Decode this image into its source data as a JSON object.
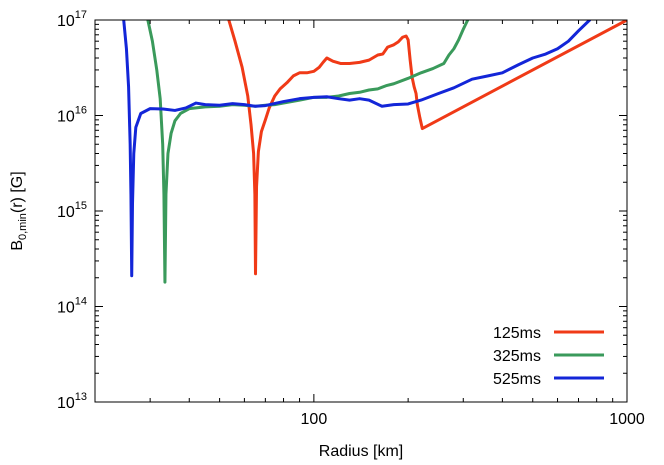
{
  "chart_data": {
    "type": "line",
    "title": "",
    "xlabel": "Radius [km]",
    "ylabel": {
      "base": "B",
      "sub": "0,min",
      "rest": "(r) [G]"
    },
    "xscale": "log",
    "yscale": "log",
    "xlim": [
      20,
      1000
    ],
    "ylim": [
      10000000000000.0,
      1e+17
    ],
    "grid": false,
    "legend_position": "bottom-right",
    "x_ticks": [
      {
        "value": 100,
        "label": "100"
      },
      {
        "value": 1000,
        "label": "1000"
      }
    ],
    "y_ticks": [
      {
        "value": 10000000000000.0,
        "base": "10",
        "exp": "13"
      },
      {
        "value": 100000000000000.0,
        "base": "10",
        "exp": "14"
      },
      {
        "value": 1000000000000000.0,
        "base": "10",
        "exp": "15"
      },
      {
        "value": 1e+16,
        "base": "10",
        "exp": "16"
      },
      {
        "value": 1e+17,
        "base": "10",
        "exp": "17"
      }
    ],
    "series": [
      {
        "name": "125ms",
        "color": "#f03a17",
        "points": [
          [
            53.5,
            1e+17
          ],
          [
            56,
            6e+16
          ],
          [
            59,
            3.2e+16
          ],
          [
            61.5,
            1.6e+16
          ],
          [
            63,
            8000000000000000.0
          ],
          [
            64.2,
            4000000000000000.0
          ],
          [
            64.8,
            1500000000000000.0
          ],
          [
            65.1,
            220000000000000.0
          ],
          [
            65.6,
            1800000000000000.0
          ],
          [
            66.5,
            4200000000000000.0
          ],
          [
            68,
            6800000000000000.0
          ],
          [
            70,
            9000000000000000.0
          ],
          [
            72,
            1.2e+16
          ],
          [
            75,
            1.6e+16
          ],
          [
            78,
            1.9e+16
          ],
          [
            82,
            2.2e+16
          ],
          [
            86,
            2.6e+16
          ],
          [
            90,
            2.8e+16
          ],
          [
            95,
            2.8e+16
          ],
          [
            100,
            2.9e+16
          ],
          [
            104,
            3.2e+16
          ],
          [
            107,
            3.6e+16
          ],
          [
            110,
            4e+16
          ],
          [
            115,
            3.7e+16
          ],
          [
            122,
            3.5e+16
          ],
          [
            130,
            3.5e+16
          ],
          [
            140,
            3.6e+16
          ],
          [
            150,
            3.8e+16
          ],
          [
            160,
            4.3e+16
          ],
          [
            166,
            4.4e+16
          ],
          [
            172,
            5.2e+16
          ],
          [
            180,
            5.5e+16
          ],
          [
            186,
            5.9e+16
          ],
          [
            192,
            6.6e+16
          ],
          [
            197,
            6.8e+16
          ],
          [
            200,
            6.2e+16
          ],
          [
            203,
            3.8e+16
          ],
          [
            206,
            2.5e+16
          ],
          [
            209,
            2e+16
          ],
          [
            212,
            1.7e+16
          ],
          [
            214,
            1.3e+16
          ],
          [
            218,
            9500000000000000.0
          ],
          [
            222,
            7300000000000000.0
          ],
          [
            1000,
            1e+17
          ]
        ]
      },
      {
        "name": "325ms",
        "color": "#3a9a5b",
        "points": [
          [
            29.5,
            1e+17
          ],
          [
            30.5,
            6e+16
          ],
          [
            31.5,
            3e+16
          ],
          [
            32.3,
            1.5e+16
          ],
          [
            32.9,
            5000000000000000.0
          ],
          [
            33.2,
            1500000000000000.0
          ],
          [
            33.45,
            180000000000000.0
          ],
          [
            33.7,
            1500000000000000.0
          ],
          [
            34.2,
            4000000000000000.0
          ],
          [
            35,
            6500000000000000.0
          ],
          [
            36,
            8800000000000000.0
          ],
          [
            37.5,
            1.05e+16
          ],
          [
            40,
            1.18e+16
          ],
          [
            45,
            1.23e+16
          ],
          [
            50,
            1.25e+16
          ],
          [
            55,
            1.3e+16
          ],
          [
            60,
            1.28e+16
          ],
          [
            65,
            1.25e+16
          ],
          [
            70,
            1.28e+16
          ],
          [
            75,
            1.3e+16
          ],
          [
            80,
            1.35e+16
          ],
          [
            90,
            1.45e+16
          ],
          [
            100,
            1.55e+16
          ],
          [
            110,
            1.55e+16
          ],
          [
            120,
            1.6e+16
          ],
          [
            130,
            1.7e+16
          ],
          [
            140,
            1.75e+16
          ],
          [
            150,
            1.85e+16
          ],
          [
            160,
            1.9e+16
          ],
          [
            170,
            2.05e+16
          ],
          [
            180,
            2.15e+16
          ],
          [
            200,
            2.45e+16
          ],
          [
            220,
            2.8e+16
          ],
          [
            240,
            3.1e+16
          ],
          [
            260,
            3.5e+16
          ],
          [
            270,
            4.3e+16
          ],
          [
            280,
            5e+16
          ],
          [
            290,
            6.2e+16
          ],
          [
            300,
            8e+16
          ],
          [
            310,
            1e+17
          ]
        ]
      },
      {
        "name": "525ms",
        "color": "#1326d8",
        "points": [
          [
            24.7,
            1e+17
          ],
          [
            25.2,
            5e+16
          ],
          [
            25.6,
            2e+16
          ],
          [
            25.9,
            5000000000000000.0
          ],
          [
            26.05,
            1500000000000000.0
          ],
          [
            26.2,
            210000000000000.0
          ],
          [
            26.35,
            1200000000000000.0
          ],
          [
            26.6,
            4000000000000000.0
          ],
          [
            27,
            7500000000000000.0
          ],
          [
            28,
            1.05e+16
          ],
          [
            30,
            1.18e+16
          ],
          [
            33,
            1.17e+16
          ],
          [
            36,
            1.13e+16
          ],
          [
            39,
            1.2e+16
          ],
          [
            42,
            1.35e+16
          ],
          [
            45,
            1.3e+16
          ],
          [
            50,
            1.28e+16
          ],
          [
            55,
            1.33e+16
          ],
          [
            60,
            1.3e+16
          ],
          [
            65,
            1.25e+16
          ],
          [
            70,
            1.27e+16
          ],
          [
            80,
            1.4e+16
          ],
          [
            90,
            1.5e+16
          ],
          [
            100,
            1.55e+16
          ],
          [
            110,
            1.57e+16
          ],
          [
            120,
            1.5e+16
          ],
          [
            130,
            1.45e+16
          ],
          [
            140,
            1.5e+16
          ],
          [
            150,
            1.45e+16
          ],
          [
            165,
            1.25e+16
          ],
          [
            180,
            1.3e+16
          ],
          [
            200,
            1.32e+16
          ],
          [
            220,
            1.45e+16
          ],
          [
            250,
            1.7e+16
          ],
          [
            280,
            1.95e+16
          ],
          [
            320,
            2.4e+16
          ],
          [
            360,
            2.6e+16
          ],
          [
            400,
            2.8e+16
          ],
          [
            450,
            3.4e+16
          ],
          [
            500,
            4e+16
          ],
          [
            550,
            4.4e+16
          ],
          [
            600,
            5e+16
          ],
          [
            650,
            6e+16
          ],
          [
            700,
            7.7e+16
          ],
          [
            760,
            1e+17
          ]
        ]
      }
    ]
  }
}
